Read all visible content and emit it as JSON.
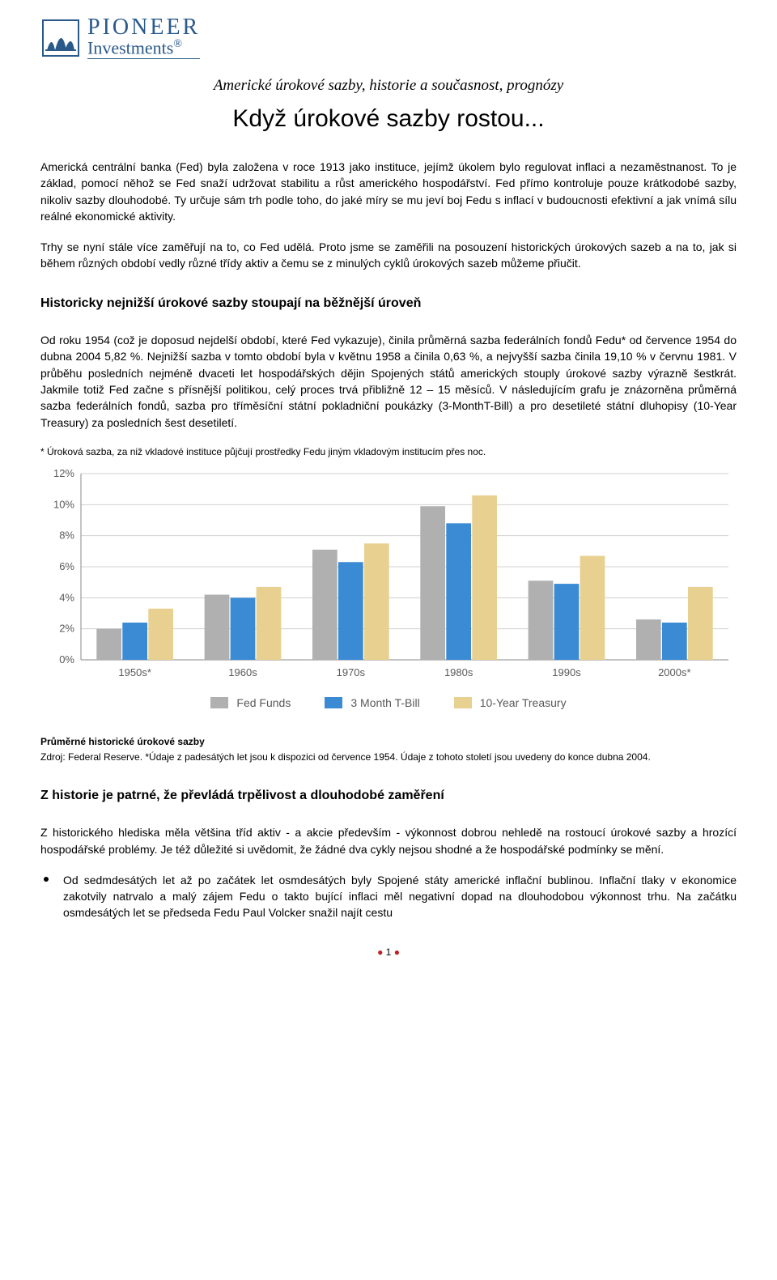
{
  "logo": {
    "line1": "PIONEER",
    "line2": "Investments",
    "reg": "®",
    "icon_color": "#2a5a8a"
  },
  "header": {
    "subtitle": "Americké úrokové sazby, historie a současnost, prognózy",
    "title": "Když úrokové sazby rostou..."
  },
  "para1": "Americká centrální banka (Fed) byla založena v roce 1913 jako instituce, jejímž úkolem bylo regulovat inflaci a nezaměstnanost. To je základ, pomocí něhož se Fed snaží udržovat stabilitu a růst amerického hospodářství. Fed přímo kontroluje pouze krátkodobé sazby, nikoliv sazby dlouhodobé. Ty určuje sám trh podle toho, do jaké míry se mu jeví boj Fedu s inflací v budoucnosti efektivní a jak vnímá sílu reálné ekonomické aktivity.",
  "para2": "Trhy se nyní stále více zaměřují na to, co Fed udělá. Proto jsme se zaměřili na posouzení historických úrokových sazeb a na to, jak si během různých období vedly různé třídy aktiv a čemu se z minulých cyklů úrokových sazeb můžeme přiučit.",
  "section1_head": "Historicky nejnižší úrokové sazby stoupají na běžnější úroveň",
  "para3": "Od roku 1954 (což je doposud nejdelší období, které Fed vykazuje), činila průměrná sazba federálních fondů Fedu* od července 1954 do dubna 2004 5,82 %. Nejnižší sazba v tomto období byla v květnu 1958 a činila 0,63 %, a nejvyšší sazba činila 19,10 % v červnu 1981. V průběhu posledních nejméně dvaceti let hospodářských dějin Spojených států amerických stouply úrokové sazby výrazně šestkrát. Jakmile totiž Fed začne s přísnější politikou, celý proces trvá přibližně 12 – 15 měsíců. V následujícím grafu je znázorněna průměrná sazba federálních fondů, sazba pro tříměsíční státní pokladniční poukázky (3-MonthT-Bill) a pro desetileté státní dluhopisy (10-Year Treasury) za posledních šest desetiletí.",
  "footnote1": "* Úroková sazba, za niž vkladové instituce půjčují prostředky Fedu jiným vkladovým institucím přes noc.",
  "chart": {
    "type": "bar",
    "categories": [
      "1950s*",
      "1960s",
      "1970s",
      "1980s",
      "1990s",
      "2000s*"
    ],
    "series": [
      {
        "name": "Fed Funds",
        "color": "#b0b0b0",
        "values": [
          2.0,
          4.2,
          7.1,
          9.9,
          5.1,
          2.6
        ]
      },
      {
        "name": "3 Month T-Bill",
        "color": "#3b8bd4",
        "values": [
          2.4,
          4.0,
          6.3,
          8.8,
          4.9,
          2.4
        ]
      },
      {
        "name": "10-Year Treasury",
        "color": "#e8d090",
        "values": [
          3.3,
          4.7,
          7.5,
          10.6,
          6.7,
          4.7
        ]
      }
    ],
    "ylim": [
      0,
      12
    ],
    "ytick_step": 2,
    "ytick_labels": [
      "0%",
      "2%",
      "4%",
      "6%",
      "8%",
      "10%",
      "12%"
    ],
    "background_color": "#ffffff",
    "grid_color": "#d0d0d0",
    "axis_color": "#888888",
    "label_color": "#595959",
    "label_fontsize": 13,
    "bar_group_width": 0.72,
    "bar_gap_inner": 0.02
  },
  "legend": {
    "items": [
      {
        "label": "Fed Funds",
        "color": "#b0b0b0"
      },
      {
        "label": "3 Month T-Bill",
        "color": "#3b8bd4"
      },
      {
        "label": "10-Year Treasury",
        "color": "#e8d090"
      }
    ]
  },
  "chart_caption_bold": "Průměrné historické úrokové sazby",
  "chart_caption_src": "Zdroj: Federal Reserve. *Údaje z padesátých let jsou k dispozici od července 1954. Údaje z tohoto století jsou uvedeny do konce dubna 2004.",
  "section2_head": "Z historie je patrné, že převládá trpělivost a dlouhodobé zaměření",
  "para4": "Z historického hlediska měla většina tříd aktiv - a akcie především - výkonnost dobrou nehledě na rostoucí úrokové sazby a hrozící hospodářské problémy. Je též důležité si uvědomit, že žádné dva cykly nejsou shodné a že hospodářské podmínky se mění.",
  "bullet1": "Od sedmdesátých let až po začátek let osmdesátých byly Spojené státy americké inflační bublinou. Inflační tlaky v ekonomice zakotvily natrvalo a malý zájem Fedu o takto bující inflaci měl negativní dopad na dlouhodobou výkonnost trhu. Na začátku osmdesátých let se předseda Fedu Paul Volcker snažil najít cestu",
  "page_number": "1"
}
